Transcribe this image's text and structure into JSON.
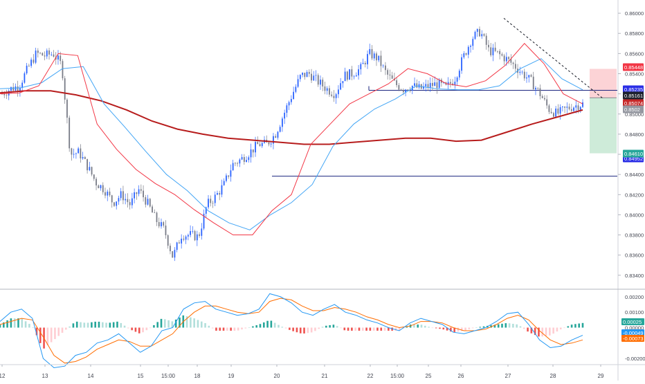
{
  "chart_data": [
    {
      "type": "candlestick",
      "panel": "price",
      "title": "",
      "x_tick_labels": [
        "12",
        "13",
        "14",
        "15",
        "15:00",
        "18",
        "19",
        "20",
        "21",
        "22",
        "15:00",
        "25",
        "26",
        "27",
        "28",
        "29"
      ],
      "y_ticks": [
        "0.86000",
        "0.85800",
        "0.85600",
        "0.85400",
        "0.85200",
        "0.85000",
        "0.84800",
        "0.84600",
        "0.84400",
        "0.84200",
        "0.84000",
        "0.83800",
        "0.83600",
        "0.83400"
      ],
      "ylim": [
        0.8333,
        0.8609
      ],
      "grid": false,
      "colors": {
        "up": "#2962ff",
        "down": "#787b86",
        "ma_fast": "#f23645",
        "ma_mid": "#42a5f5",
        "ma_slow": "#b71c1c"
      },
      "ma_fast": [
        0.852,
        0.8521,
        0.8528,
        0.856,
        0.8558,
        0.849,
        0.8465,
        0.8445,
        0.8431,
        0.842,
        0.8405,
        0.8392,
        0.838,
        0.838,
        0.8404,
        0.842,
        0.847,
        0.849,
        0.851,
        0.852,
        0.853,
        0.8545,
        0.854,
        0.853,
        0.8527,
        0.8533,
        0.8548,
        0.857,
        0.855,
        0.852,
        0.851
      ],
      "ma_mid": [
        0.8525,
        0.8526,
        0.8531,
        0.8545,
        0.8547,
        0.851,
        0.8487,
        0.8463,
        0.844,
        0.8424,
        0.8404,
        0.8392,
        0.8385,
        0.84,
        0.8412,
        0.843,
        0.8468,
        0.849,
        0.8505,
        0.8515,
        0.8528,
        0.8525,
        0.8524,
        0.8524,
        0.8528,
        0.8545,
        0.8555,
        0.8535,
        0.8524
      ],
      "ma_slow": [
        0.8521,
        0.8523,
        0.8523,
        0.8519,
        0.8513,
        0.8504,
        0.8493,
        0.8485,
        0.848,
        0.8476,
        0.8474,
        0.8472,
        0.847,
        0.847,
        0.8472,
        0.8474,
        0.8476,
        0.8476,
        0.8473,
        0.8474,
        0.8482,
        0.849,
        0.8497,
        0.8504
      ],
      "candle_path": [
        0.852,
        0.8525,
        0.8528,
        0.8545,
        0.856,
        0.8558,
        0.856,
        0.8548,
        0.846,
        0.8462,
        0.8448,
        0.8432,
        0.8425,
        0.8412,
        0.842,
        0.841,
        0.8425,
        0.8412,
        0.8395,
        0.8385,
        0.8358,
        0.838,
        0.838,
        0.8378,
        0.841,
        0.8418,
        0.843,
        0.845,
        0.8455,
        0.8462,
        0.847,
        0.847,
        0.848,
        0.85,
        0.852,
        0.8538,
        0.854,
        0.8532,
        0.8525,
        0.852,
        0.8538,
        0.854,
        0.8545,
        0.856,
        0.8555,
        0.854,
        0.853,
        0.8525,
        0.8528,
        0.8525,
        0.8528,
        0.853,
        0.8526,
        0.8535,
        0.8556,
        0.8575,
        0.8582,
        0.8563,
        0.856,
        0.8555,
        0.8548,
        0.854,
        0.8532,
        0.852,
        0.8505,
        0.85,
        0.8505,
        0.8508,
        0.851
      ],
      "levels": [
        {
          "label": "0.85448",
          "value": 0.85448,
          "bg": "#f23645"
        },
        {
          "label": "0.85235",
          "value": 0.85235,
          "bg": "#2a2ee6"
        },
        {
          "label": "0.85161",
          "value": 0.85161,
          "bg": "#1e222d"
        },
        {
          "label": "0.85074",
          "value": 0.85074,
          "bg": "#c62828"
        },
        {
          "label": "0.8502",
          "value": 0.8502,
          "bg": "#9598a1"
        },
        {
          "label": "0.84952",
          "value": 0.84952,
          "bg": "#2a2ee6"
        },
        {
          "label": "0.84610",
          "value": 0.8461,
          "bg": "#26a69a"
        }
      ],
      "horizontal_lines": [
        0.85235,
        0.8461
      ],
      "trendline": {
        "x": [
          "27",
          "29"
        ],
        "y": [
          0.8595,
          0.8515
        ]
      },
      "position": {
        "entry": 0.85161,
        "stop": 0.85448,
        "target": 0.8461
      }
    },
    {
      "type": "macd",
      "panel": "indicator",
      "title": "",
      "y_ticks": [
        "0.00200",
        "0.00100",
        "0.00000",
        "-0.00200"
      ],
      "ylim": [
        -0.0024,
        0.0024
      ],
      "colors": {
        "macd": "#2196f3",
        "signal": "#ff6d00",
        "hist_up": "#26a69a",
        "hist_down": "#ef5350"
      },
      "macd_line": [
        0.0004,
        0.001,
        0.0012,
        0.0006,
        -0.002,
        -0.0026,
        -0.0025,
        -0.0018,
        -0.0016,
        -0.001,
        -0.0008,
        -0.0004,
        -0.001,
        -0.0016,
        -0.0012,
        -0.0002,
        0.0,
        0.0012,
        0.0016,
        0.0017,
        0.0012,
        0.001,
        0.0008,
        0.0009,
        0.0012,
        0.0022,
        0.002,
        0.0016,
        0.001,
        0.0008,
        0.0012,
        0.0015,
        0.001,
        0.0008,
        0.0005,
        0.0003,
        0.0,
        -0.0002,
        0.0003,
        0.0006,
        0.0004,
        0.0002,
        -0.0003,
        -0.0004,
        -0.0002,
        0.0,
        0.0004,
        0.0009,
        0.001,
        0.0002,
        -0.0008,
        -0.0013,
        -0.0012,
        -0.0008,
        -0.0005
      ],
      "signal_line": [
        0.0002,
        0.0004,
        0.0006,
        0.0005,
        -0.0006,
        -0.0018,
        -0.0023,
        -0.0022,
        -0.0019,
        -0.0014,
        -0.0011,
        -0.0008,
        -0.0009,
        -0.0012,
        -0.0012,
        -0.0008,
        -0.0004,
        0.0004,
        0.001,
        0.0014,
        0.0014,
        0.0012,
        0.001,
        0.0009,
        0.001,
        0.0017,
        0.0019,
        0.0018,
        0.0014,
        0.0011,
        0.0011,
        0.0013,
        0.0012,
        0.001,
        0.0007,
        0.0005,
        0.0002,
        0.0,
        0.0001,
        0.0004,
        0.0004,
        0.0003,
        0.0,
        -0.0002,
        -0.0002,
        -0.0001,
        0.0002,
        0.0006,
        0.0008,
        0.0005,
        -0.0002,
        -0.0008,
        -0.0011,
        -0.001,
        -0.0008
      ],
      "levels": [
        {
          "label": "0.00025",
          "value": 0.00025,
          "bg": "#26a69a"
        },
        {
          "label": "-0.00049",
          "value": -0.00049,
          "bg": "#2196f3"
        },
        {
          "label": "-0.00073",
          "value": -0.00073,
          "bg": "#ff6d00"
        }
      ]
    }
  ]
}
